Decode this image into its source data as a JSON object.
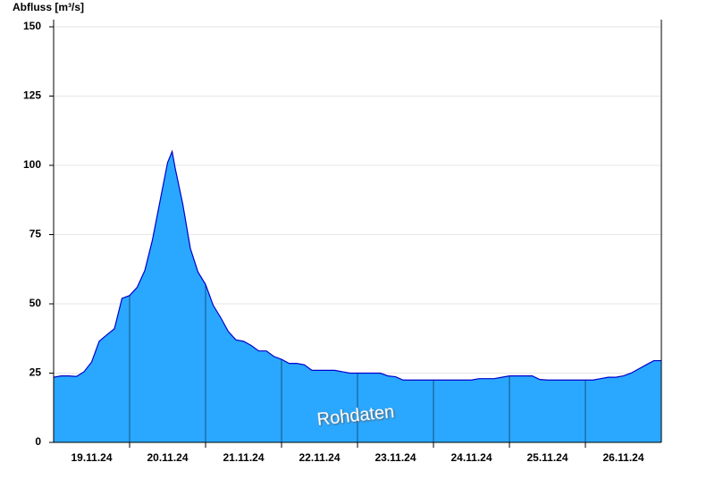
{
  "chart_data": {
    "type": "area",
    "y_label": "Abfluss [m³/s]",
    "annotation": "Rohdaten",
    "x": [
      0,
      0.1,
      0.2,
      0.3,
      0.4,
      0.5,
      0.6,
      0.7,
      0.8,
      0.9,
      1.0,
      1.1,
      1.2,
      1.3,
      1.4,
      1.5,
      1.56,
      1.6,
      1.7,
      1.8,
      1.9,
      2.0,
      2.1,
      2.2,
      2.3,
      2.4,
      2.5,
      2.6,
      2.7,
      2.8,
      2.9,
      3.0,
      3.1,
      3.2,
      3.3,
      3.4,
      3.5,
      3.6,
      3.7,
      3.8,
      3.9,
      4.0,
      4.1,
      4.2,
      4.3,
      4.4,
      4.5,
      4.6,
      4.7,
      4.8,
      4.9,
      5.0,
      5.1,
      5.2,
      5.3,
      5.4,
      5.5,
      5.6,
      5.7,
      5.8,
      5.9,
      6.0,
      6.1,
      6.2,
      6.3,
      6.4,
      6.5,
      6.6,
      6.7,
      6.8,
      6.9,
      7.0,
      7.1,
      7.2,
      7.3,
      7.4,
      7.5,
      7.6,
      7.7,
      7.8,
      7.9,
      8.0
    ],
    "values": [
      23.5,
      24,
      24,
      23.8,
      25.5,
      29,
      36.5,
      38.8,
      41,
      52,
      53,
      56,
      62,
      73,
      87,
      101,
      105,
      99,
      86,
      70,
      61.5,
      57,
      49.5,
      45,
      40,
      37,
      36.5,
      35,
      33,
      33,
      31,
      30,
      28.5,
      28.5,
      28,
      26,
      26,
      26,
      26,
      25.5,
      25,
      25,
      25,
      25,
      25,
      24,
      23.7,
      22.5,
      22.5,
      22.5,
      22.5,
      22.5,
      22.5,
      22.5,
      22.5,
      22.5,
      22.5,
      23,
      23,
      23,
      23.5,
      24,
      24,
      24,
      24,
      22.7,
      22.5,
      22.5,
      22.5,
      22.5,
      22.5,
      22.5,
      22.5,
      23,
      23.5,
      23.5,
      24,
      25,
      26.5,
      28,
      29.5,
      29.5
    ],
    "color": "#2aa8ff",
    "line_color": "#0000cc",
    "xlim": [
      0,
      8
    ],
    "xticks": [
      {
        "value": 0.5,
        "label": "19.11.24"
      },
      {
        "value": 1.5,
        "label": "20.11.24"
      },
      {
        "value": 2.5,
        "label": "21.11.24"
      },
      {
        "value": 3.5,
        "label": "22.11.24"
      },
      {
        "value": 4.5,
        "label": "23.11.24"
      },
      {
        "value": 5.5,
        "label": "24.11.24"
      },
      {
        "value": 6.5,
        "label": "25.11.24"
      },
      {
        "value": 7.5,
        "label": "26.11.24"
      }
    ],
    "xticks_minor": [
      1,
      2,
      3,
      4,
      5,
      6,
      7
    ],
    "ylim": [
      0,
      150
    ],
    "yticks": [
      0,
      25,
      50,
      75,
      100,
      125,
      150
    ],
    "grid": true
  }
}
